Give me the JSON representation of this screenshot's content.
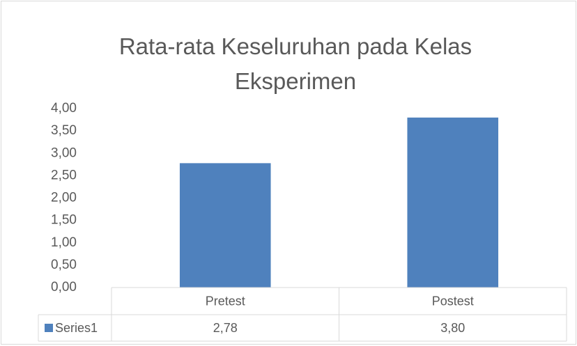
{
  "chart_data": {
    "type": "bar",
    "title": "Rata-rata Keseluruhan pada Kelas Eksperimen",
    "categories": [
      "Pretest",
      "Postest"
    ],
    "series": [
      {
        "name": "Series1",
        "color": "#4f81bd",
        "values": [
          2.78,
          3.8
        ],
        "value_labels": [
          "2,78",
          "3,80"
        ]
      }
    ],
    "ylim": [
      0,
      4
    ],
    "yticks": [
      {
        "value": 0,
        "label": "0,00"
      },
      {
        "value": 0.5,
        "label": "0,50"
      },
      {
        "value": 1,
        "label": "1,00"
      },
      {
        "value": 1.5,
        "label": "1,50"
      },
      {
        "value": 2,
        "label": "2,00"
      },
      {
        "value": 2.5,
        "label": "2,50"
      },
      {
        "value": 3,
        "label": "3,00"
      },
      {
        "value": 3.5,
        "label": "3,50"
      },
      {
        "value": 4,
        "label": "4,00"
      }
    ],
    "grid": false,
    "data_table": true
  }
}
